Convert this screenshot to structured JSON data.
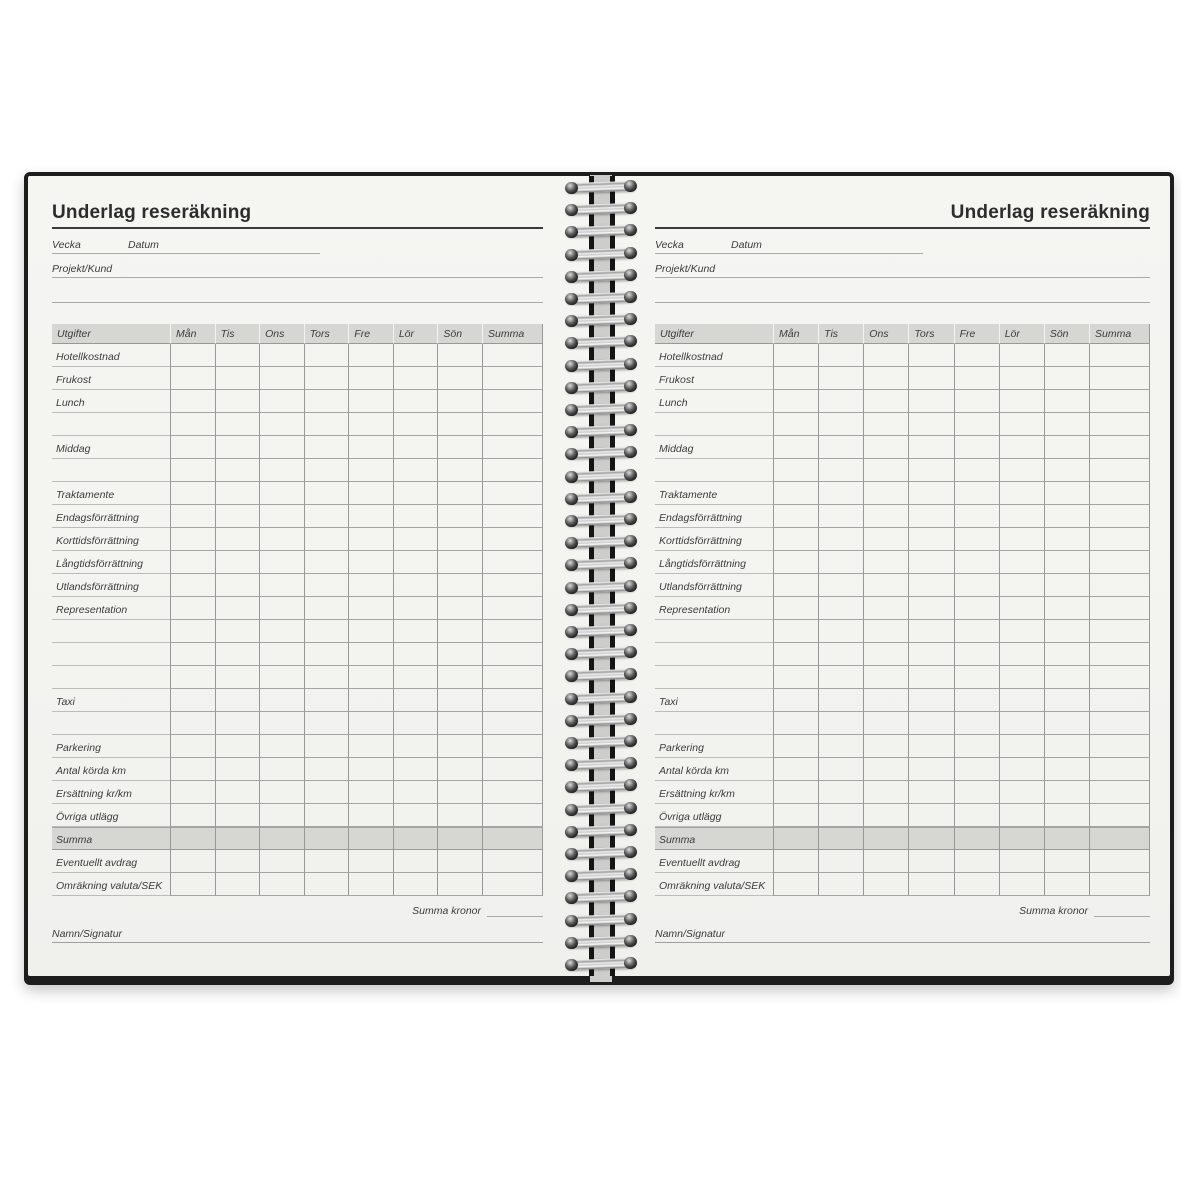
{
  "page": {
    "title": "Underlag reseräkning",
    "fields": {
      "week_label": "Vecka",
      "date_label": "Datum",
      "project_label": "Projekt/Kund"
    },
    "table": {
      "expense_header": "Utgifter",
      "day_headers": [
        "Mån",
        "Tis",
        "Ons",
        "Tors",
        "Fre",
        "Lör",
        "Sön"
      ],
      "sum_header": "Summa",
      "rows": [
        {
          "label": "Hotellkostnad",
          "shaded": false
        },
        {
          "label": "Frukost",
          "shaded": false
        },
        {
          "label": "Lunch",
          "shaded": false
        },
        {
          "label": "",
          "shaded": false
        },
        {
          "label": "Middag",
          "shaded": false
        },
        {
          "label": "",
          "shaded": false
        },
        {
          "label": "Traktamente",
          "shaded": false
        },
        {
          "label": "Endagsförrättning",
          "shaded": false
        },
        {
          "label": "Korttidsförrättning",
          "shaded": false
        },
        {
          "label": "Långtidsförrättning",
          "shaded": false
        },
        {
          "label": "Utlandsförrättning",
          "shaded": false
        },
        {
          "label": "Representation",
          "shaded": false
        },
        {
          "label": "",
          "shaded": false
        },
        {
          "label": "",
          "shaded": false
        },
        {
          "label": "",
          "shaded": false
        },
        {
          "label": "Taxi",
          "shaded": false
        },
        {
          "label": "",
          "shaded": false
        },
        {
          "label": "Parkering",
          "shaded": false
        },
        {
          "label": "Antal körda km",
          "shaded": false
        },
        {
          "label": "Ersättning kr/km",
          "shaded": false
        },
        {
          "label": "Övriga utlägg",
          "shaded": false
        },
        {
          "label": "Summa",
          "shaded": true
        },
        {
          "label": "Eventuellt avdrag",
          "shaded": false
        },
        {
          "label": "Omräkning valuta/SEK",
          "shaded": false
        }
      ]
    },
    "footer": {
      "total_label": "Summa kronor",
      "signature_label": "Namn/Signatur"
    }
  },
  "binding": {
    "coil_count": 36
  },
  "colors": {
    "background": "#ffffff",
    "paper": "#f3f3f0",
    "cover": "#1d1d1d",
    "shaded_row": "#d6d6d3",
    "grid_line": "#989896",
    "field_line": "#a9a9a7"
  }
}
